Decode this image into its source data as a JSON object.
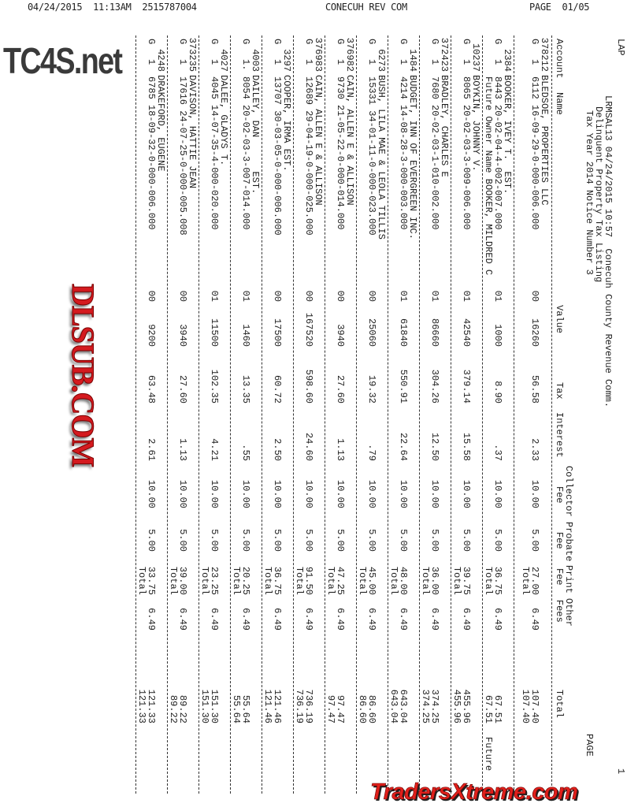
{
  "fax_header": {
    "left": "04/24/2015  11:13AM  2515787004",
    "center": "CONECUH REV COM",
    "right": "PAGE  01/05"
  },
  "report": {
    "lap": "LAP",
    "title_line1": "LRMSAL13 04/24/2015 10:57  Conecuh County Revenue Comm.",
    "title_line2": "Delinquent Property Tax Listing",
    "title_line3": "Tax Year 2014 Notice Number 3",
    "page_label": "PAGE",
    "page_number": "1"
  },
  "columns": {
    "account": "Account",
    "name": "Name",
    "value": "Value",
    "tax": "Tax",
    "interest": "Interest",
    "collector_1": "Collector",
    "collector_2": "Fee",
    "probate_1": "Probate",
    "probate_2": "Fee",
    "print_1": "Print",
    "print_2": "Fee",
    "other_1": "Other",
    "other_2": "Fees",
    "total": "Total"
  },
  "total_label": "Total",
  "rows": [
    {
      "account": "378212",
      "g": "G",
      "seq": "1",
      "name": "BLEDSOE, PROPERTIES LLC",
      "parcel": "6112 16-09-29-0-000-006.000",
      "code": "00",
      "value": "16260",
      "tax": "56.58",
      "interest": "2.33",
      "collector": "10.00",
      "probate": "5.00",
      "print": "27.00",
      "other": "6.49",
      "total": "107.40"
    },
    {
      "account": "2384",
      "g": "G",
      "seq": "1",
      "name": "BOOKER, IVEY T.  EST.",
      "parcel": "8443 20-02-04-4-002-007.000",
      "code": "01",
      "value": "1000",
      "tax": "8.90",
      "interest": ".37",
      "collector": "10.00",
      "probate": "5.00",
      "print": "36.75",
      "other": "6.49",
      "total": "67.51",
      "future_owner": "Future Owner Name BOOKER, MILDRED C",
      "future_note": "Future"
    },
    {
      "account": "10237",
      "g": "G",
      "seq": "1",
      "name": "BOYKIN, JOHNNY V.",
      "parcel": "8065 20-02-03-3-009-006.000",
      "code": "01",
      "value": "42540",
      "tax": "379.14",
      "interest": "15.58",
      "collector": "10.00",
      "probate": "5.00",
      "print": "39.75",
      "other": "6.49",
      "total": "455.96"
    },
    {
      "account": "372423",
      "g": "G",
      "seq": "1",
      "name": "BRADLEY, CHARLES E",
      "parcel": "7680 20-02-03-1-010-002.000",
      "code": "01",
      "value": "86660",
      "tax": "304.26",
      "interest": "12.50",
      "collector": "10.00",
      "probate": "5.00",
      "print": "36.00",
      "other": "6.49",
      "total": "374.25"
    },
    {
      "account": "1484",
      "g": "G",
      "seq": "1",
      "name": "BUDGET, INN OF EVERGREEN INC.",
      "parcel": "4214 14-08-28-3-000-003.000",
      "code": "01",
      "value": "61840",
      "tax": "550.91",
      "interest": "22.64",
      "collector": "10.00",
      "probate": "5.00",
      "print": "48.00",
      "other": "6.49",
      "total": "643.04"
    },
    {
      "account": "6273",
      "g": "G",
      "seq": "1",
      "name": "BUSH, LILA MAE & LEOLA TILLIS",
      "parcel": "15331 34-01-11-0-000-023.000",
      "code": "00",
      "value": "25060",
      "tax": "19.32",
      "interest": ".79",
      "collector": "10.00",
      "probate": "5.00",
      "print": "45.00",
      "other": "6.49",
      "total": "86.60"
    },
    {
      "account": "376982",
      "g": "G",
      "seq": "1",
      "name": "CAIN, ALLEN E & ALLISON",
      "parcel": "9730 21-05-22-0-000-014.000",
      "code": "00",
      "value": "3940",
      "tax": "27.60",
      "interest": "1.13",
      "collector": "10.00",
      "probate": "5.00",
      "print": "47.25",
      "other": "6.49",
      "total": "97.47"
    },
    {
      "account": "376983",
      "g": "G",
      "seq": "1",
      "name": "CAIN, ALLEN E & ALLISON",
      "parcel": "12689 29-04-19-0-000-025.000",
      "code": "00",
      "value": "167520",
      "tax": "598.60",
      "interest": "24.60",
      "collector": "10.00",
      "probate": "5.00",
      "print": "91.50",
      "other": "6.49",
      "total": "736.19"
    },
    {
      "account": "3297",
      "g": "G",
      "seq": "1",
      "name": "COOPER, IRMA EST.",
      "parcel": "13707 30-03-05-0-000-006.000",
      "code": "00",
      "value": "17500",
      "tax": "60.72",
      "interest": "2.50",
      "collector": "10.00",
      "probate": "5.00",
      "print": "36.75",
      "other": "6.49",
      "total": "121.46"
    },
    {
      "account": "4003",
      "g": "G",
      "seq": "1.",
      "name": "DAILEY, DAN      EST.",
      "parcel": "8054 20-02-03-3-007-014.000",
      "code": "01",
      "value": "1460",
      "tax": "13.35",
      "interest": ".55",
      "collector": "10.00",
      "probate": "5.00",
      "print": "20.25",
      "other": "6.49",
      "total": "55.64"
    },
    {
      "account": "4027",
      "g": "G",
      "seq": "1",
      "name": "DALEE, GLADYS T.",
      "parcel": "4045 14-07-35-4-000-020.000",
      "code": "01",
      "value": "11500",
      "tax": "102.35",
      "interest": "4.21",
      "collector": "10.00",
      "probate": "5.00",
      "print": "23.25",
      "other": "6.49",
      "total": "151.30"
    },
    {
      "account": "373235",
      "g": "G",
      "seq": "1",
      "name": "DAVISON, HATTIE JEAN",
      "parcel": "17616 24-07-25-0-000-005.008",
      "code": "00",
      "value": "3940",
      "tax": "27.60",
      "interest": "1.13",
      "collector": "10.00",
      "probate": "5.00",
      "print": "39.00",
      "other": "6.49",
      "total": "89.22"
    },
    {
      "account": "4248",
      "g": "G",
      "seq": "1",
      "name": "DRAKEFORD, EUGENE",
      "parcel": "6785 18-09-32-0-000-006.000",
      "code": "00",
      "value": "9200",
      "tax": "63.48",
      "interest": "2.61",
      "collector": "10.00",
      "probate": "5.00",
      "print": "33.75",
      "other": "6.49",
      "total": "121.33"
    }
  ],
  "watermarks": {
    "top": "TC4S.net",
    "center": "DLSUB.COM",
    "bottom": "TradersXtreme.com",
    "center_color": "#d41a1f",
    "bottom_color": "#e0201b"
  }
}
